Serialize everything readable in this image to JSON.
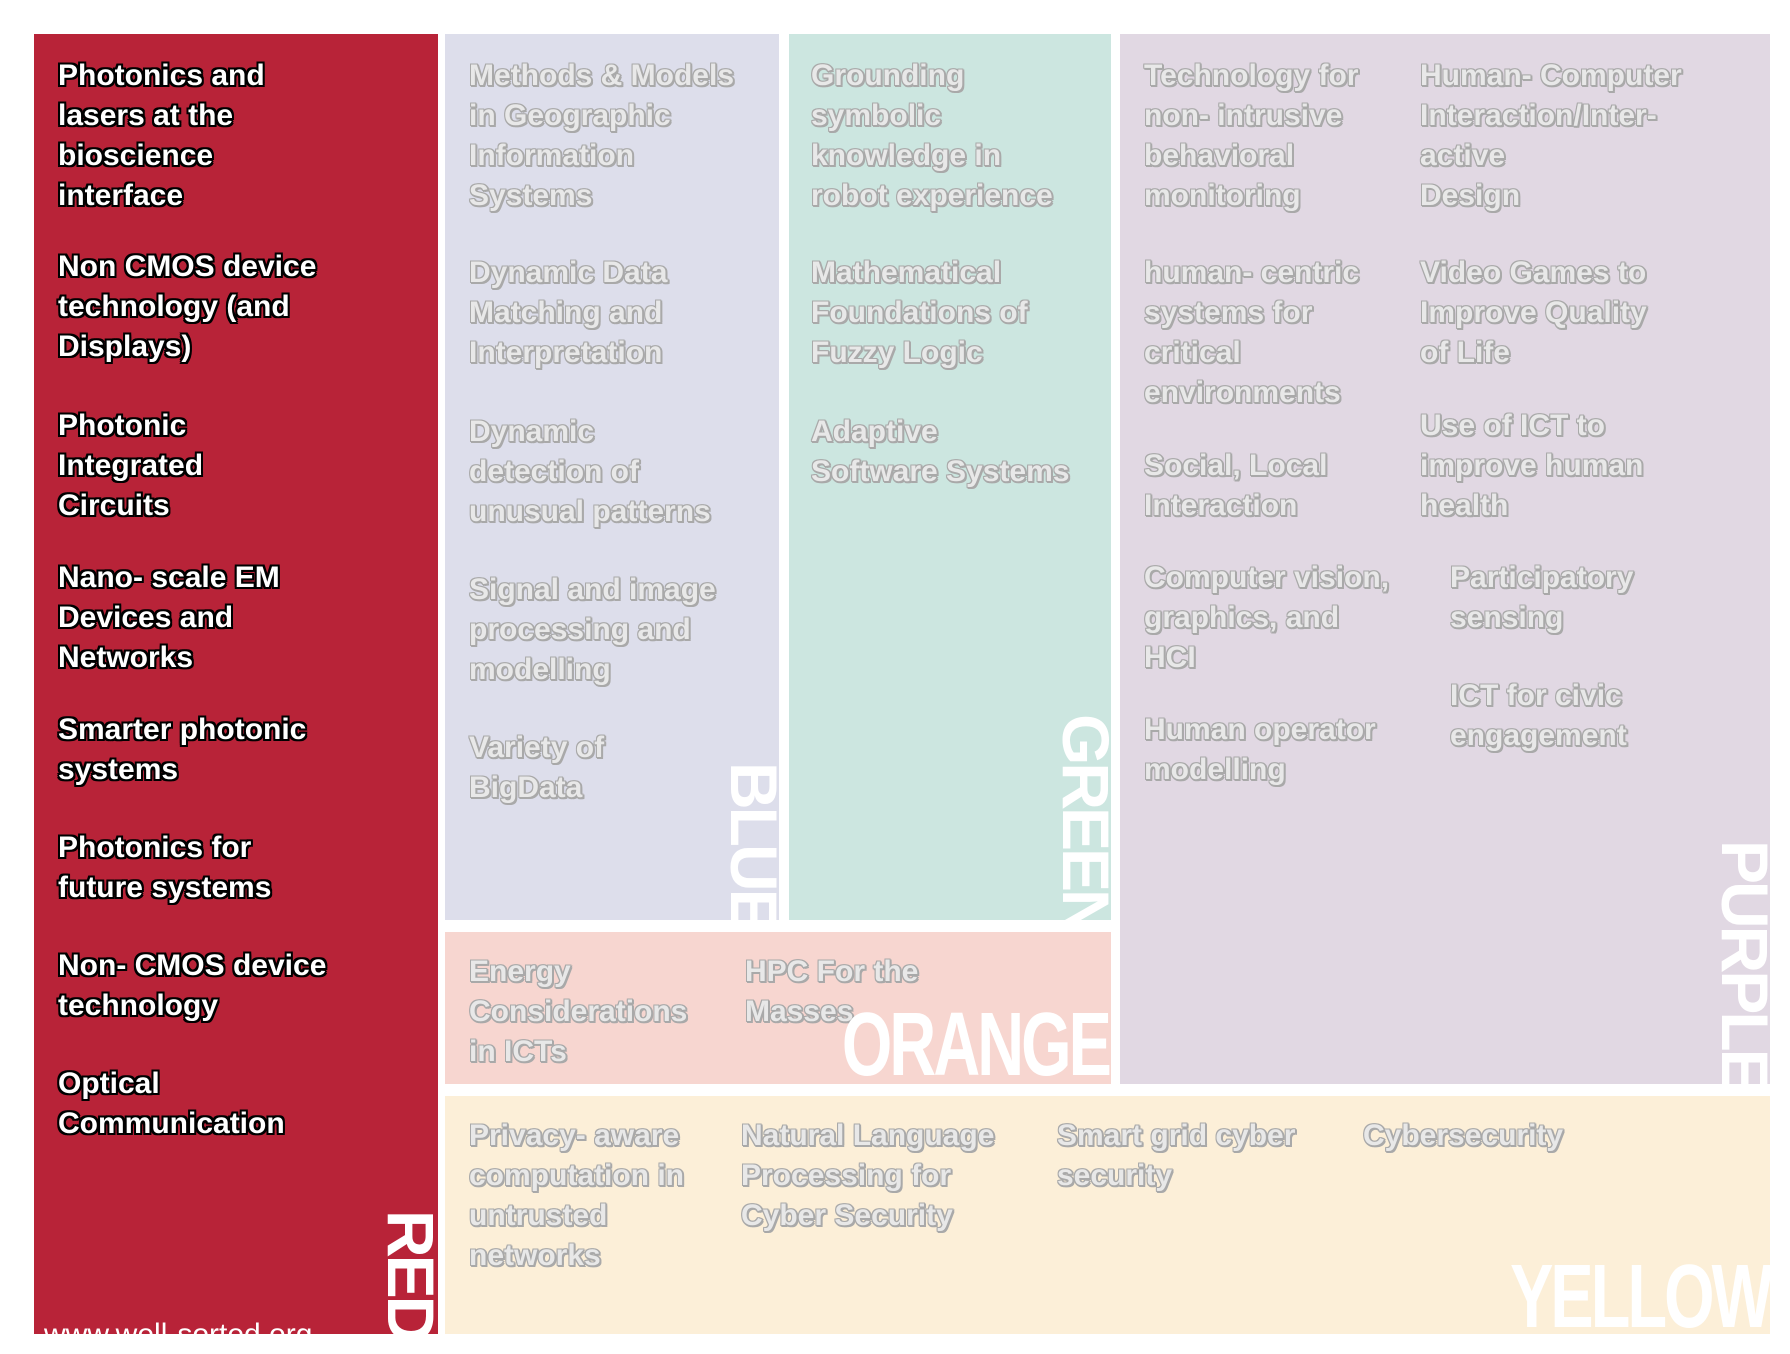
{
  "groups": {
    "red": {
      "label": "RED",
      "color": "#b82338",
      "items": [
        "Photonics and\nlasers at the\nbioscience\ninterface",
        "Non CMOS device\ntechnology (and\nDisplays)",
        "Photonic\nIntegrated\nCircuits",
        "Nano- scale EM\nDevices and\nNetworks",
        "Smarter photonic\nsystems",
        "Photonics for\nfuture systems",
        "Non- CMOS device\ntechnology",
        "Optical\nCommunication"
      ],
      "footer": "www.well-sorted.org"
    },
    "blue": {
      "label": "BLUE",
      "color": "#dddeeb",
      "items": [
        "Methods & Models\nin Geographic\nInformation\nSystems",
        "Dynamic Data\nMatching and\nInterpretation",
        "Dynamic\ndetection of\nunusual patterns",
        "Signal and image\nprocessing and\nmodelling",
        "Variety of\nBigData"
      ]
    },
    "green": {
      "label": "GREEN",
      "color": "#cce6e0",
      "items": [
        "Grounding\nsymbolic\nknowledge in\nrobot experience",
        "Mathematical\nFoundations of\nFuzzy Logic",
        "Adaptive\nSoftware Systems"
      ]
    },
    "purple": {
      "label": "PURPLE",
      "color": "#e1d8e3",
      "items": [
        "Technology for\nnon- intrusive\nbehavioral\nmonitoring",
        "human- centric\nsystems for\ncritical\nenvironments",
        "Social, Local\nInteraction",
        "Computer vision,\ngraphics, and\nHCI",
        "Human operator\nmodelling",
        "Human- Computer\nInteraction/Inter-\nactive\nDesign",
        "Video Games to\nImprove Quality\nof Life",
        "Use of ICT to\nimprove human\nhealth",
        "Participatory\nsensing",
        "ICT for civic\nengagement"
      ]
    },
    "orange": {
      "label": "ORANGE",
      "color": "#f7d6d0",
      "items": [
        "Energy\nConsiderations\nin ICTs",
        "HPC For the\nMasses"
      ]
    },
    "yellow": {
      "label": "YELLOW",
      "color": "#fcefd8",
      "items": [
        "Privacy- aware\ncomputation in\nuntrusted\nnetworks",
        "Natural Language\nProcessing for\nCyber Security",
        "Smart grid cyber\nsecurity",
        "Cybersecurity"
      ]
    }
  }
}
